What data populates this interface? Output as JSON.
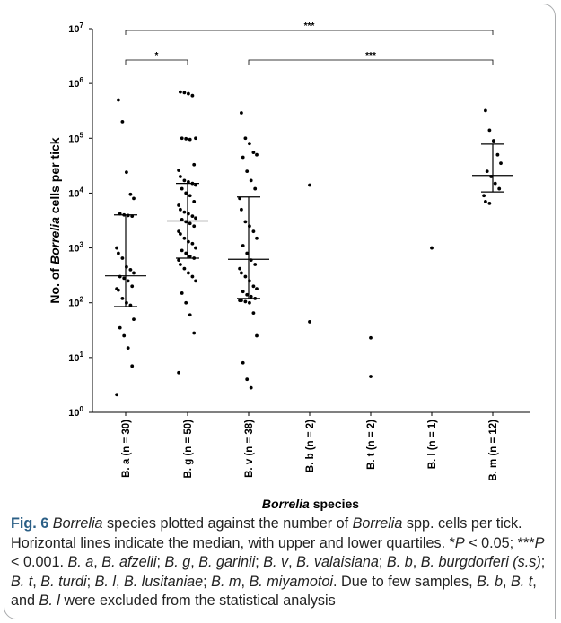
{
  "chart_data": {
    "type": "scatter",
    "ylabel_prefix": "No. of ",
    "ylabel_italic": "Borrelia",
    "ylabel_suffix": " cells per tick",
    "xlabel_italic": "Borrelia",
    "xlabel_suffix": " species",
    "yscale": "log",
    "ylim": [
      1,
      10000000
    ],
    "yticks": [
      {
        "value": 1,
        "base": "10",
        "exp": "0"
      },
      {
        "value": 10,
        "base": "10",
        "exp": "1"
      },
      {
        "value": 100,
        "base": "10",
        "exp": "2"
      },
      {
        "value": 1000,
        "base": "10",
        "exp": "3"
      },
      {
        "value": 10000,
        "base": "10",
        "exp": "4"
      },
      {
        "value": 100000,
        "base": "10",
        "exp": "5"
      },
      {
        "value": 1000000,
        "base": "10",
        "exp": "6"
      },
      {
        "value": 10000000,
        "base": "10",
        "exp": "7"
      }
    ],
    "categories": [
      "B. a (n = 30)",
      "B. g (n = 50)",
      "B. v (n = 38)",
      "B. b (n = 2)",
      "B. t (n = 2)",
      "B. l (n = 1)",
      "B. m (n = 12)"
    ],
    "groups": [
      {
        "category": "B. a (n = 30)",
        "median": 310,
        "q1": 85,
        "q3": 4000,
        "points": [
          500000,
          200000,
          24000,
          9500,
          8000,
          4200,
          4000,
          3900,
          3800,
          1000,
          800,
          650,
          450,
          400,
          350,
          300,
          280,
          250,
          200,
          180,
          170,
          120,
          100,
          90,
          50,
          35,
          25,
          15,
          7,
          2.1
        ]
      },
      {
        "category": "B. g (n = 50)",
        "median": 3100,
        "q1": 650,
        "q3": 15000,
        "points": [
          700000,
          680000,
          650000,
          600000,
          100000,
          100000,
          98000,
          95000,
          33000,
          26000,
          20000,
          17000,
          16000,
          15000,
          14000,
          12000,
          10000,
          9000,
          7000,
          6000,
          5000,
          4500,
          4200,
          3800,
          3500,
          3300,
          3000,
          2800,
          2500,
          2000,
          1800,
          1500,
          1300,
          1200,
          1000,
          900,
          800,
          700,
          650,
          600,
          500,
          420,
          350,
          300,
          250,
          150,
          100,
          60,
          28,
          5.3
        ]
      },
      {
        "category": "B. v (n = 38)",
        "median": 620,
        "q1": 120,
        "q3": 8500,
        "points": [
          290000,
          100000,
          80000,
          55000,
          50000,
          45000,
          25000,
          17000,
          12000,
          8000,
          5000,
          3000,
          2500,
          2000,
          1500,
          1100,
          800,
          600,
          500,
          420,
          350,
          300,
          250,
          200,
          180,
          160,
          140,
          130,
          120,
          110,
          110,
          105,
          100,
          65,
          25,
          8,
          4,
          2.8
        ]
      },
      {
        "category": "B. b (n = 2)",
        "points": [
          14000,
          45
        ]
      },
      {
        "category": "B. t (n = 2)",
        "points": [
          23,
          4.5
        ]
      },
      {
        "category": "B. l (n = 1)",
        "points": [
          1000
        ]
      },
      {
        "category": "B. m (n = 12)",
        "median": 21000,
        "q1": 10500,
        "q3": 78000,
        "points": [
          320000,
          140000,
          90000,
          50000,
          35000,
          25000,
          20000,
          15000,
          12000,
          9000,
          7000,
          6500
        ]
      }
    ],
    "significance": [
      {
        "from": "B. a (n = 30)",
        "to": "B. g (n = 50)",
        "label": "*"
      },
      {
        "from": "B. v (n = 38)",
        "to": "B. m (n = 12)",
        "label": "***"
      },
      {
        "from": "B. a (n = 30)",
        "to": "B. m (n = 12)",
        "label": "***"
      }
    ]
  },
  "caption": {
    "label": "Fig. 6",
    "segments": [
      {
        "t": "  ",
        "i": false
      },
      {
        "t": "Borrelia",
        "i": true
      },
      {
        "t": " species plotted against the number of ",
        "i": false
      },
      {
        "t": "Borrelia",
        "i": true
      },
      {
        "t": " spp. cells per tick. Horizontal lines indicate the median, with upper and lower quartiles. *",
        "i": false
      },
      {
        "t": "P",
        "i": true
      },
      {
        "t": " < 0.05; ***",
        "i": false
      },
      {
        "t": "P",
        "i": true
      },
      {
        "t": " < 0.001. ",
        "i": false
      },
      {
        "t": "B. a",
        "i": true
      },
      {
        "t": ", ",
        "i": false
      },
      {
        "t": "B. afzelii",
        "i": true
      },
      {
        "t": "; ",
        "i": false
      },
      {
        "t": "B. g",
        "i": true
      },
      {
        "t": ", ",
        "i": false
      },
      {
        "t": "B. garinii",
        "i": true
      },
      {
        "t": "; ",
        "i": false
      },
      {
        "t": "B. v",
        "i": true
      },
      {
        "t": ", ",
        "i": false
      },
      {
        "t": "B. valaisiana",
        "i": true
      },
      {
        "t": "; ",
        "i": false
      },
      {
        "t": "B. b",
        "i": true
      },
      {
        "t": ", ",
        "i": false
      },
      {
        "t": "B. burgdorferi (s.s)",
        "i": true
      },
      {
        "t": "; ",
        "i": false
      },
      {
        "t": "B. t",
        "i": true
      },
      {
        "t": ", ",
        "i": false
      },
      {
        "t": "B. turdi",
        "i": true
      },
      {
        "t": "; ",
        "i": false
      },
      {
        "t": "B. l",
        "i": true
      },
      {
        "t": ", ",
        "i": false
      },
      {
        "t": "B. lusitaniae",
        "i": true
      },
      {
        "t": "; ",
        "i": false
      },
      {
        "t": "B. m",
        "i": true
      },
      {
        "t": ", ",
        "i": false
      },
      {
        "t": "B. miyamotoi",
        "i": true
      },
      {
        "t": ". Due to few samples, ",
        "i": false
      },
      {
        "t": "B. b",
        "i": true
      },
      {
        "t": ", ",
        "i": false
      },
      {
        "t": "B. t",
        "i": true
      },
      {
        "t": ", and ",
        "i": false
      },
      {
        "t": "B. l",
        "i": true
      },
      {
        "t": " were excluded from the statistical analysis",
        "i": false
      }
    ]
  }
}
